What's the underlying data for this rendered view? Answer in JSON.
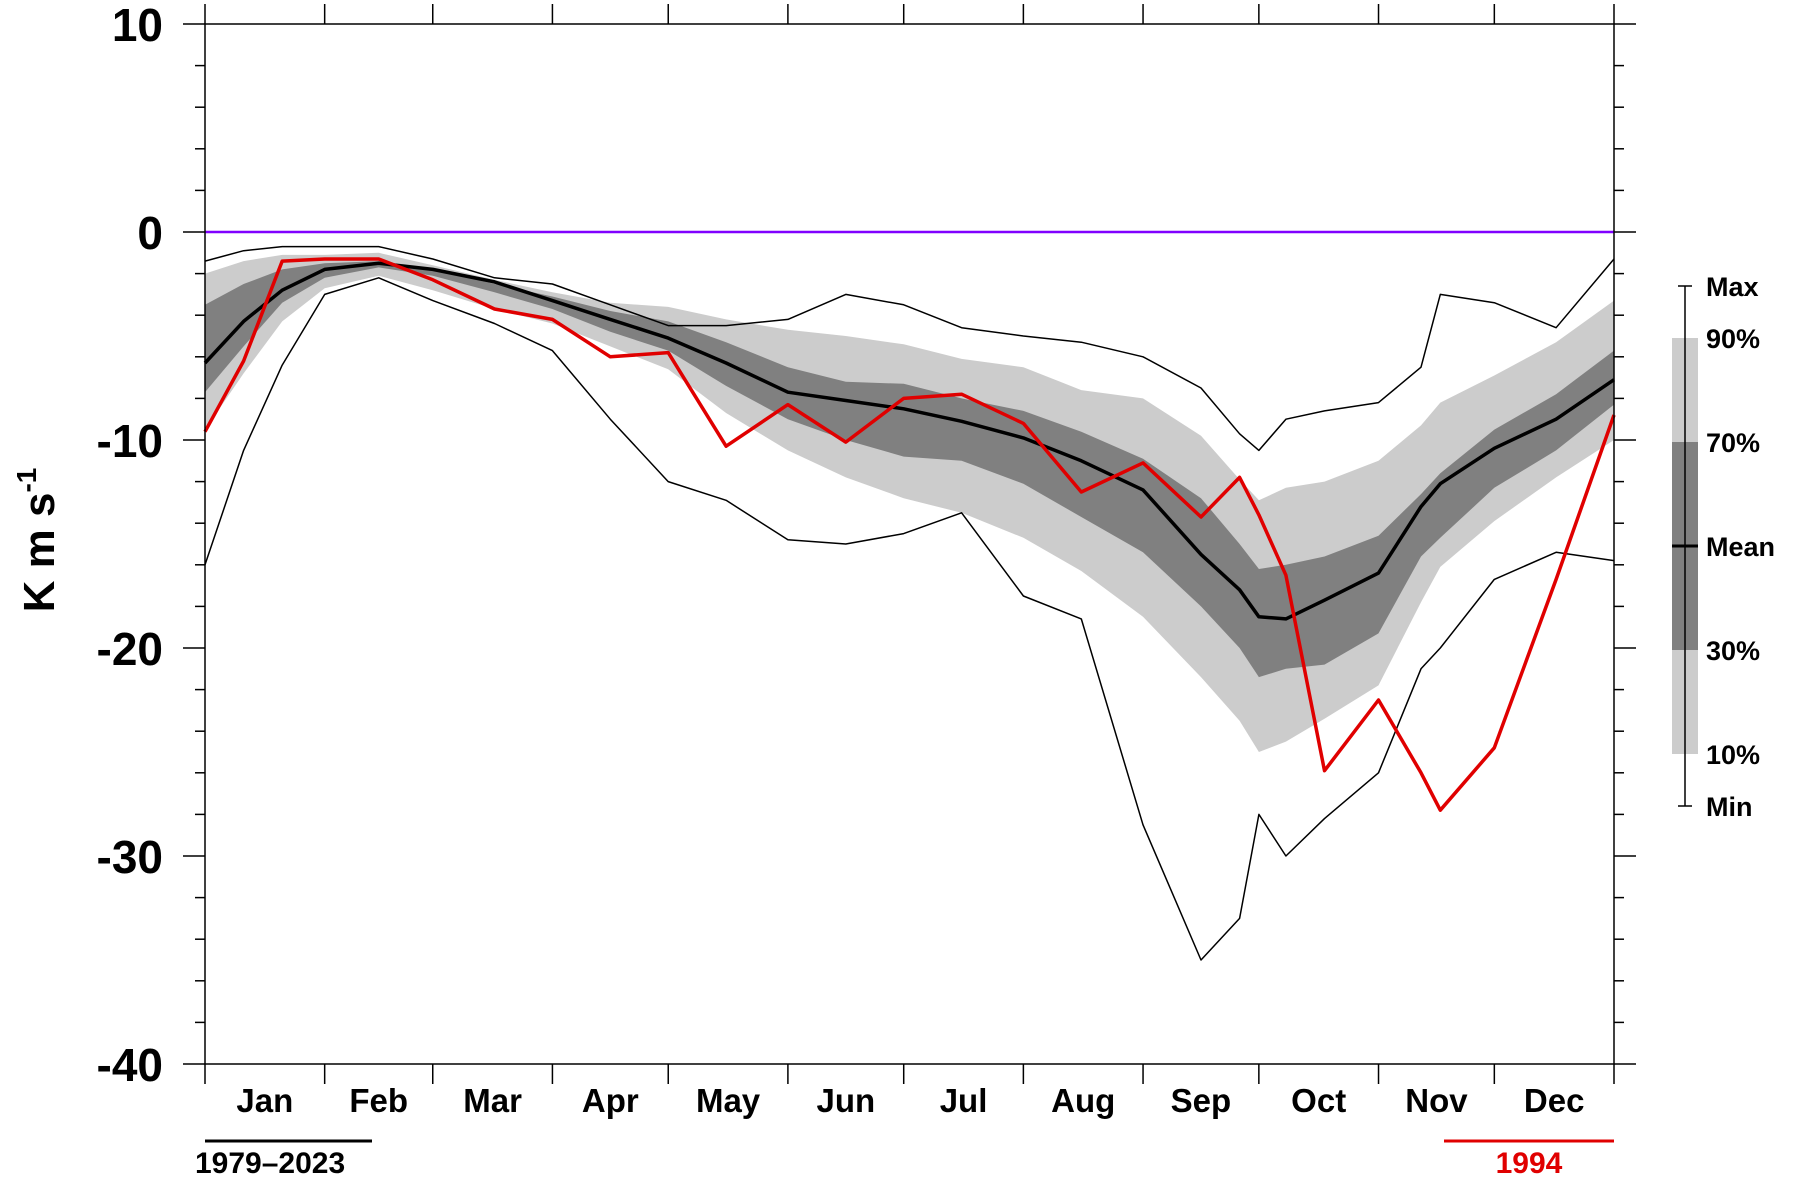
{
  "chart_data": {
    "type": "area",
    "ylabel": "K m s",
    "ylabel_superscript": "-1",
    "ylim": [
      -40,
      10
    ],
    "yticks": [
      {
        "value": 10,
        "label": "10"
      },
      {
        "value": 0,
        "label": "0"
      },
      {
        "value": -10,
        "label": "-10"
      },
      {
        "value": -20,
        "label": "-20"
      },
      {
        "value": -30,
        "label": "-30"
      },
      {
        "value": -40,
        "label": "-40"
      }
    ],
    "xlim": [
      0,
      365
    ],
    "month_labels": [
      "Jan",
      "Feb",
      "Mar",
      "Apr",
      "May",
      "Jun",
      "Jul",
      "Aug",
      "Sep",
      "Oct",
      "Nov",
      "Dec"
    ],
    "month_boundaries": [
      0,
      31,
      59,
      90,
      120,
      151,
      181,
      212,
      243,
      273,
      304,
      334,
      365
    ],
    "reference_line": {
      "value": 0,
      "color": "#8000ff"
    },
    "climatology_period": "1979–2023",
    "highlight_year": "1994",
    "legend": {
      "labels": {
        "max": "Max",
        "p90": "90%",
        "p70": "70%",
        "mean": "Mean",
        "p30": "30%",
        "p10": "10%",
        "min": "Min"
      }
    },
    "colors": {
      "band_10_90": "#cccccc",
      "band_30_70": "#808080",
      "mean": "#000000",
      "minmax": "#000000",
      "year": "#e00000",
      "zero": "#8000ff"
    },
    "x": [
      0,
      10,
      20,
      31,
      45,
      59,
      75,
      90,
      105,
      120,
      135,
      151,
      166,
      181,
      196,
      212,
      227,
      243,
      258,
      268,
      273,
      280,
      290,
      304,
      315,
      320,
      334,
      350,
      365
    ],
    "series": [
      {
        "key": "max",
        "values": [
          -1.4,
          -0.9,
          -0.7,
          -0.7,
          -0.7,
          -1.3,
          -2.2,
          -2.5,
          -3.5,
          -4.5,
          -4.5,
          -4.2,
          -3.0,
          -3.5,
          -4.6,
          -5.0,
          -5.3,
          -6.0,
          -7.5,
          -9.7,
          -10.5,
          -9.0,
          -8.6,
          -8.2,
          -6.5,
          -3.0,
          -3.4,
          -4.6,
          -1.3
        ]
      },
      {
        "key": "p90",
        "values": [
          -2.0,
          -1.4,
          -1.1,
          -1.1,
          -1.0,
          -1.6,
          -2.3,
          -2.9,
          -3.4,
          -3.6,
          -4.2,
          -4.7,
          -5.0,
          -5.4,
          -6.1,
          -6.5,
          -7.6,
          -8.0,
          -9.8,
          -11.9,
          -12.9,
          -12.3,
          -12.0,
          -11.0,
          -9.3,
          -8.2,
          -6.9,
          -5.3,
          -3.3
        ]
      },
      {
        "key": "p70",
        "values": [
          -3.5,
          -2.5,
          -1.8,
          -1.5,
          -1.4,
          -1.8,
          -2.5,
          -3.1,
          -3.8,
          -4.3,
          -5.3,
          -6.5,
          -7.2,
          -7.3,
          -8.0,
          -8.6,
          -9.6,
          -10.9,
          -12.8,
          -15.0,
          -16.2,
          -16.0,
          -15.6,
          -14.6,
          -12.6,
          -11.6,
          -9.5,
          -7.8,
          -5.7
        ]
      },
      {
        "key": "mean",
        "values": [
          -6.3,
          -4.3,
          -2.8,
          -1.8,
          -1.5,
          -1.8,
          -2.4,
          -3.3,
          -4.2,
          -5.1,
          -6.3,
          -7.7,
          -8.1,
          -8.5,
          -9.1,
          -9.9,
          -11.0,
          -12.4,
          -15.5,
          -17.2,
          -18.5,
          -18.6,
          -17.7,
          -16.4,
          -13.2,
          -12.1,
          -10.4,
          -9.0,
          -7.1
        ]
      },
      {
        "key": "p30",
        "values": [
          -7.7,
          -5.5,
          -3.4,
          -2.2,
          -1.7,
          -2.1,
          -2.9,
          -3.7,
          -4.8,
          -5.7,
          -7.4,
          -9.0,
          -10.0,
          -10.8,
          -11.0,
          -12.1,
          -13.7,
          -15.4,
          -18.0,
          -20.0,
          -21.4,
          -21.0,
          -20.8,
          -19.3,
          -15.6,
          -14.7,
          -12.3,
          -10.5,
          -8.3
        ]
      },
      {
        "key": "p10",
        "values": [
          -9.5,
          -6.8,
          -4.3,
          -2.7,
          -2.1,
          -2.8,
          -3.7,
          -4.4,
          -5.5,
          -6.6,
          -8.7,
          -10.5,
          -11.8,
          -12.8,
          -13.5,
          -14.7,
          -16.3,
          -18.5,
          -21.4,
          -23.5,
          -25.0,
          -24.5,
          -23.4,
          -21.8,
          -17.8,
          -16.1,
          -13.9,
          -11.8,
          -10.0
        ]
      },
      {
        "key": "min",
        "values": [
          -16.0,
          -10.5,
          -6.4,
          -3.0,
          -2.2,
          -3.3,
          -4.4,
          -5.7,
          -9.0,
          -12.0,
          -12.9,
          -14.8,
          -15.0,
          -14.5,
          -13.5,
          -17.5,
          -18.6,
          -28.5,
          -35.0,
          -33.0,
          -28.0,
          -30.0,
          -28.2,
          -26.0,
          -21.0,
          -20.0,
          -16.7,
          -15.4,
          -15.8
        ]
      },
      {
        "key": "year1994",
        "values": [
          -9.6,
          -6.2,
          -1.4,
          -1.3,
          -1.3,
          -2.3,
          -3.7,
          -4.2,
          -6.0,
          -5.8,
          -10.3,
          -8.3,
          -10.1,
          -8.0,
          -7.8,
          -9.2,
          -12.5,
          -11.1,
          -13.7,
          -11.8,
          -13.6,
          -16.5,
          -25.9,
          -22.5,
          -26.0,
          -27.8,
          -24.8,
          -16.7,
          -8.8
        ]
      }
    ]
  }
}
